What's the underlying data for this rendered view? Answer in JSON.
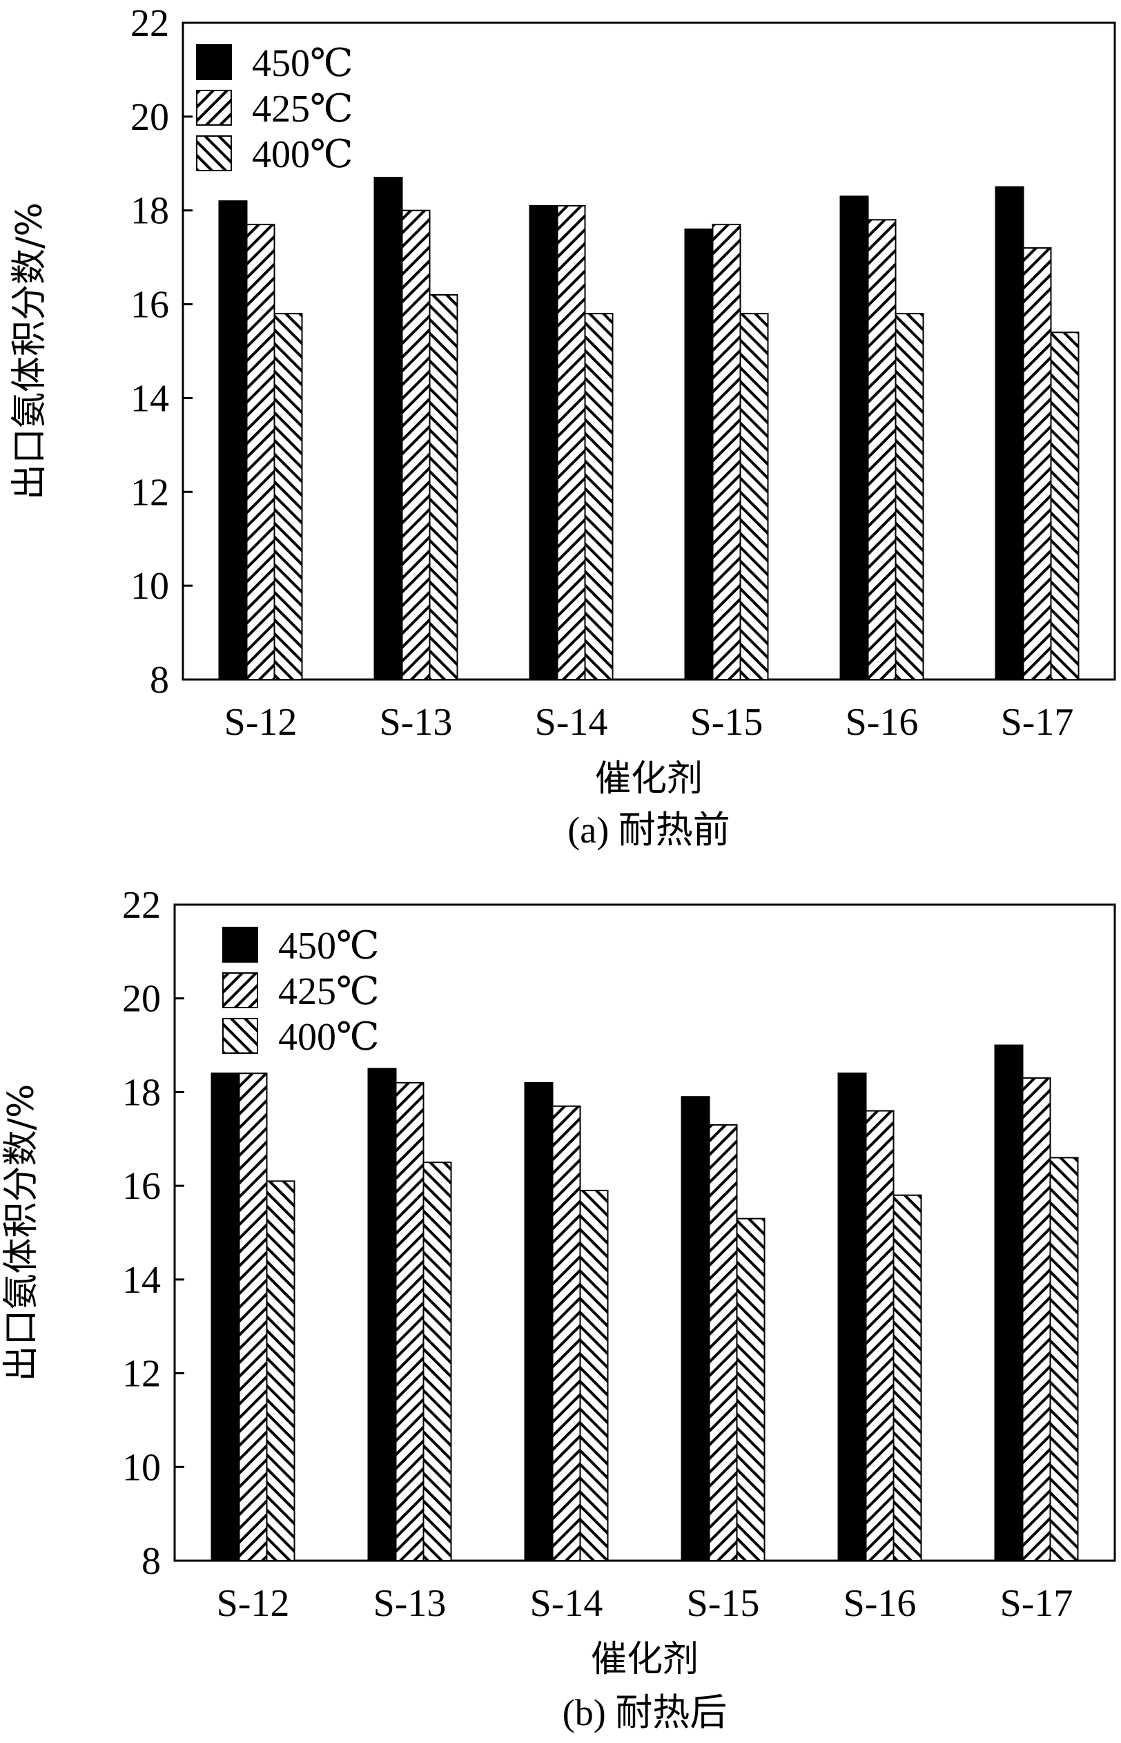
{
  "chart_data": [
    {
      "type": "bar",
      "caption": "(a) 耐热前",
      "xlabel": "催化剂",
      "ylabel": "出口氨体积分数/%",
      "ylim": [
        8,
        22
      ],
      "yticks": [
        8,
        10,
        12,
        14,
        16,
        18,
        20,
        22
      ],
      "categories": [
        "S-12",
        "S-13",
        "S-14",
        "S-15",
        "S-16",
        "S-17"
      ],
      "series": [
        {
          "name": "450℃",
          "pattern": "solid",
          "values": [
            18.2,
            18.7,
            18.1,
            17.6,
            18.3,
            18.5
          ]
        },
        {
          "name": "425℃",
          "pattern": "forward-hatch",
          "values": [
            17.7,
            18.0,
            18.1,
            17.7,
            17.8,
            17.2
          ]
        },
        {
          "name": "400℃",
          "pattern": "back-hatch",
          "values": [
            15.8,
            16.2,
            15.8,
            15.8,
            15.8,
            15.4
          ]
        }
      ],
      "legend_position": "top-left",
      "grid": false
    },
    {
      "type": "bar",
      "caption": "(b) 耐热后",
      "xlabel": "催化剂",
      "ylabel": "出口氨体积分数/%",
      "ylim": [
        8,
        22
      ],
      "yticks": [
        8,
        10,
        12,
        14,
        16,
        18,
        20,
        22
      ],
      "categories": [
        "S-12",
        "S-13",
        "S-14",
        "S-15",
        "S-16",
        "S-17"
      ],
      "series": [
        {
          "name": "450℃",
          "pattern": "solid",
          "values": [
            18.4,
            18.5,
            18.2,
            17.9,
            18.4,
            19.0
          ]
        },
        {
          "name": "425℃",
          "pattern": "forward-hatch",
          "values": [
            18.4,
            18.2,
            17.7,
            17.3,
            17.6,
            18.3
          ]
        },
        {
          "name": "400℃",
          "pattern": "back-hatch",
          "values": [
            16.1,
            16.5,
            15.9,
            15.3,
            15.8,
            16.6
          ]
        }
      ],
      "legend_position": "top-left",
      "grid": false
    }
  ]
}
